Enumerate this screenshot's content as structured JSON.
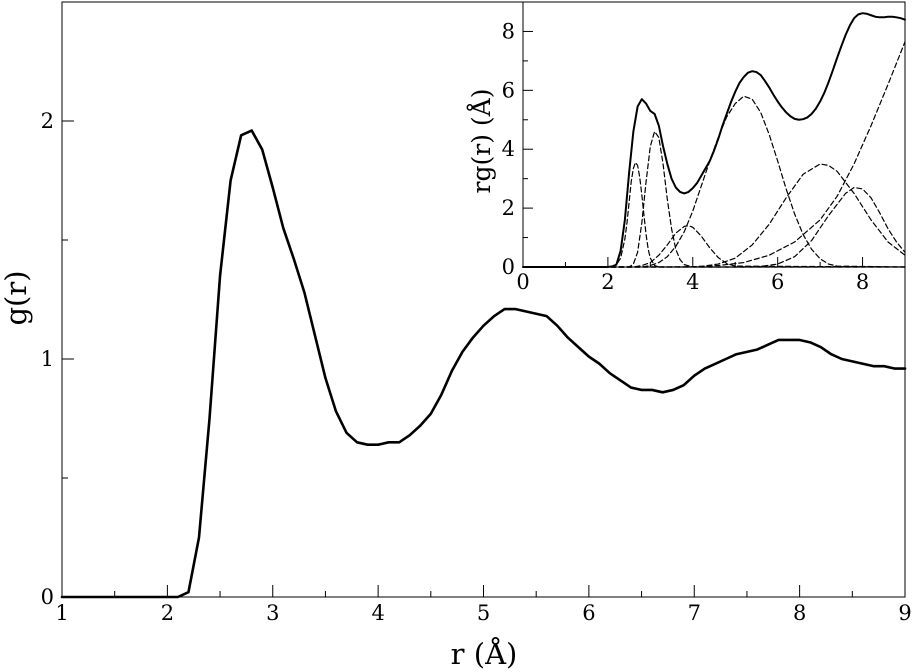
{
  "chart_data": [
    {
      "type": "line",
      "title": "",
      "xlabel": "r (Å)",
      "ylabel": "g(r)",
      "xlim": [
        1,
        9
      ],
      "ylim": [
        0,
        2.5
      ],
      "xticks": [
        "1",
        "2",
        "3",
        "4",
        "5",
        "6",
        "7",
        "8",
        "9"
      ],
      "yticks": [
        "0",
        "1",
        "2"
      ],
      "xtick_values": [
        1,
        2,
        3,
        4,
        5,
        6,
        7,
        8,
        9
      ],
      "ytick_values": [
        0,
        1,
        2
      ],
      "grid": false,
      "series": [
        {
          "style": "solid",
          "x": [
            1.0,
            1.5,
            2.0,
            2.1,
            2.2,
            2.3,
            2.4,
            2.5,
            2.6,
            2.7,
            2.8,
            2.9,
            3.0,
            3.1,
            3.2,
            3.3,
            3.4,
            3.5,
            3.6,
            3.7,
            3.8,
            3.9,
            4.0,
            4.1,
            4.2,
            4.3,
            4.4,
            4.5,
            4.6,
            4.7,
            4.8,
            4.9,
            5.0,
            5.1,
            5.2,
            5.3,
            5.4,
            5.5,
            5.6,
            5.7,
            5.8,
            5.9,
            6.0,
            6.1,
            6.2,
            6.3,
            6.4,
            6.5,
            6.6,
            6.7,
            6.8,
            6.9,
            7.0,
            7.1,
            7.2,
            7.3,
            7.4,
            7.5,
            7.6,
            7.7,
            7.8,
            7.9,
            8.0,
            8.1,
            8.2,
            8.3,
            8.4,
            8.5,
            8.6,
            8.7,
            8.8,
            8.9,
            9.0
          ],
          "y": [
            0.0,
            0.0,
            0.0,
            0.0,
            0.02,
            0.25,
            0.75,
            1.35,
            1.75,
            1.94,
            1.96,
            1.88,
            1.72,
            1.55,
            1.42,
            1.28,
            1.1,
            0.92,
            0.78,
            0.69,
            0.65,
            0.64,
            0.64,
            0.65,
            0.65,
            0.68,
            0.72,
            0.77,
            0.85,
            0.95,
            1.03,
            1.09,
            1.14,
            1.18,
            1.21,
            1.21,
            1.2,
            1.19,
            1.18,
            1.14,
            1.09,
            1.05,
            1.01,
            0.98,
            0.94,
            0.91,
            0.88,
            0.87,
            0.87,
            0.86,
            0.87,
            0.89,
            0.93,
            0.96,
            0.98,
            1.0,
            1.02,
            1.03,
            1.04,
            1.06,
            1.08,
            1.08,
            1.08,
            1.07,
            1.05,
            1.02,
            1.0,
            0.99,
            0.98,
            0.97,
            0.97,
            0.96,
            0.96
          ]
        }
      ]
    },
    {
      "type": "line",
      "title": "",
      "xlabel": "",
      "ylabel": "rg(r) (Å)",
      "xlim": [
        0,
        9
      ],
      "ylim": [
        0,
        9
      ],
      "xticks": [
        "0",
        "2",
        "4",
        "6",
        "8"
      ],
      "yticks": [
        "0",
        "2",
        "4",
        "6",
        "8"
      ],
      "xtick_values": [
        0,
        2,
        4,
        6,
        8
      ],
      "ytick_values": [
        0,
        2,
        4,
        6,
        8
      ],
      "grid": false,
      "series": [
        {
          "style": "solid",
          "x": [
            0,
            2.0,
            2.1,
            2.2,
            2.3,
            2.4,
            2.5,
            2.6,
            2.7,
            2.8,
            2.9,
            3.0,
            3.1,
            3.2,
            3.3,
            3.4,
            3.5,
            3.6,
            3.7,
            3.8,
            3.9,
            4.0,
            4.1,
            4.2,
            4.3,
            4.4,
            4.5,
            4.6,
            4.7,
            4.8,
            4.9,
            5.0,
            5.1,
            5.2,
            5.3,
            5.4,
            5.5,
            5.6,
            5.7,
            5.8,
            5.9,
            6.0,
            6.1,
            6.2,
            6.3,
            6.4,
            6.5,
            6.6,
            6.7,
            6.8,
            6.9,
            7.0,
            7.1,
            7.2,
            7.3,
            7.4,
            7.5,
            7.6,
            7.7,
            7.8,
            7.9,
            8.0,
            8.1,
            8.2,
            8.3,
            8.4,
            8.5,
            8.6,
            8.7,
            8.8,
            8.9,
            9.0
          ],
          "y": [
            0,
            0,
            0.02,
            0.08,
            0.55,
            1.6,
            3.2,
            4.6,
            5.45,
            5.7,
            5.55,
            5.3,
            5.2,
            4.8,
            4.1,
            3.5,
            3.0,
            2.7,
            2.55,
            2.5,
            2.55,
            2.68,
            2.85,
            3.1,
            3.35,
            3.6,
            3.95,
            4.35,
            4.8,
            5.2,
            5.6,
            5.95,
            6.25,
            6.45,
            6.6,
            6.65,
            6.62,
            6.52,
            6.32,
            6.1,
            5.85,
            5.62,
            5.42,
            5.25,
            5.12,
            5.03,
            5.0,
            5.02,
            5.08,
            5.2,
            5.38,
            5.62,
            5.92,
            6.28,
            6.68,
            7.1,
            7.5,
            7.88,
            8.2,
            8.45,
            8.58,
            8.62,
            8.6,
            8.55,
            8.5,
            8.48,
            8.48,
            8.5,
            8.5,
            8.48,
            8.45,
            8.4
          ]
        },
        {
          "style": "dashed",
          "x": [
            0,
            2.0,
            2.1,
            2.2,
            2.3,
            2.4,
            2.45,
            2.5,
            2.55,
            2.6,
            2.65,
            2.7,
            2.75,
            2.8,
            2.85,
            2.9,
            2.95,
            3.0,
            3.1,
            3.2,
            9.0
          ],
          "y": [
            0,
            0,
            0.02,
            0.08,
            0.3,
            0.95,
            1.5,
            2.2,
            2.9,
            3.35,
            3.55,
            3.45,
            3.05,
            2.45,
            1.75,
            1.1,
            0.6,
            0.3,
            0.05,
            0,
            0
          ]
        },
        {
          "style": "dashed",
          "x": [
            0,
            2.5,
            2.6,
            2.7,
            2.8,
            2.9,
            3.0,
            3.1,
            3.2,
            3.3,
            3.4,
            3.5,
            3.6,
            3.7,
            3.8,
            4.0,
            9.0
          ],
          "y": [
            0,
            0,
            0.1,
            0.5,
            1.5,
            2.9,
            4.1,
            4.6,
            4.4,
            3.5,
            2.3,
            1.3,
            0.6,
            0.25,
            0.08,
            0,
            0
          ]
        },
        {
          "style": "dashed",
          "x": [
            0,
            2.6,
            2.8,
            3.0,
            3.2,
            3.4,
            3.6,
            3.8,
            3.9,
            4.0,
            4.2,
            4.4,
            4.6,
            4.8,
            5.0,
            9.0
          ],
          "y": [
            0,
            0,
            0.05,
            0.15,
            0.4,
            0.75,
            1.15,
            1.38,
            1.4,
            1.35,
            1.05,
            0.65,
            0.32,
            0.12,
            0.03,
            0
          ]
        },
        {
          "style": "dashed",
          "x": [
            0,
            2.8,
            3.0,
            3.2,
            3.4,
            3.6,
            3.8,
            4.0,
            4.2,
            4.4,
            4.6,
            4.8,
            5.0,
            5.2,
            5.4,
            5.6,
            5.8,
            6.0,
            6.2,
            6.4,
            6.6,
            6.8,
            7.0,
            7.2,
            7.4,
            9.0
          ],
          "y": [
            0,
            0,
            0.05,
            0.15,
            0.35,
            0.7,
            1.2,
            1.9,
            2.75,
            3.6,
            4.4,
            5.1,
            5.55,
            5.8,
            5.7,
            5.25,
            4.5,
            3.6,
            2.65,
            1.8,
            1.1,
            0.6,
            0.28,
            0.1,
            0.03,
            0
          ]
        },
        {
          "style": "dashed",
          "x": [
            0,
            3.8,
            4.2,
            4.6,
            5.0,
            5.4,
            5.8,
            6.2,
            6.6,
            7.0,
            7.2,
            7.4,
            7.8,
            8.2,
            8.6,
            9.0
          ],
          "y": [
            0,
            0,
            0.02,
            0.1,
            0.3,
            0.75,
            1.45,
            2.35,
            3.15,
            3.5,
            3.45,
            3.25,
            2.5,
            1.6,
            0.85,
            0.4
          ]
        },
        {
          "style": "dashed",
          "x": [
            0,
            5.2,
            5.6,
            6.0,
            6.4,
            6.8,
            7.2,
            7.6,
            7.8,
            8.0,
            8.2,
            8.4,
            8.6,
            8.8,
            9.0
          ],
          "y": [
            0,
            0,
            0.02,
            0.1,
            0.35,
            0.9,
            1.75,
            2.5,
            2.7,
            2.65,
            2.35,
            1.85,
            1.3,
            0.85,
            0.5
          ]
        },
        {
          "style": "dashed",
          "x": [
            0,
            3.4,
            4.0,
            4.6,
            5.2,
            5.8,
            6.4,
            7.0,
            7.4,
            7.8,
            8.2,
            8.6,
            9.0
          ],
          "y": [
            0,
            0,
            0.01,
            0.05,
            0.15,
            0.4,
            0.85,
            1.6,
            2.4,
            3.5,
            4.8,
            6.2,
            7.65
          ]
        }
      ]
    }
  ]
}
